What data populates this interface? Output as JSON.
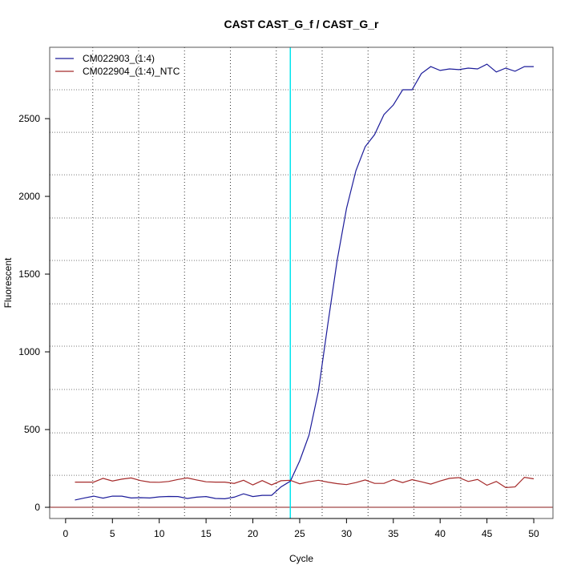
{
  "chart_data": {
    "type": "line",
    "title": "CAST  CAST_G_f / CAST_G_r",
    "xlabel": "Cycle",
    "ylabel": "Fluorescent",
    "xlim": [
      -1.7,
      52.05
    ],
    "ylim": [
      -72,
      2959
    ],
    "x_ticks": [
      0,
      5,
      10,
      15,
      20,
      25,
      30,
      35,
      40,
      45,
      50
    ],
    "y_ticks": [
      0,
      500,
      1000,
      1500,
      2000,
      2500
    ],
    "grid": true,
    "grid_x": [
      2.9,
      7.8,
      12.7,
      17.6,
      22.5,
      27.4,
      32.3,
      37.2,
      42.2,
      47.1
    ],
    "grid_y": [
      206,
      479,
      758,
      1036,
      1309,
      1588,
      1861,
      2139,
      2412,
      2686
    ],
    "threshold_cycle": 24,
    "threshold_color": "#00e5ee",
    "baseline_value": 0,
    "legend_position": "top-left",
    "x": [
      1,
      2,
      3,
      4,
      5,
      6,
      7,
      8,
      9,
      10,
      11,
      12,
      13,
      14,
      15,
      16,
      17,
      18,
      19,
      20,
      21,
      22,
      23,
      24,
      25,
      26,
      27,
      28,
      29,
      30,
      31,
      32,
      33,
      34,
      35,
      36,
      37,
      38,
      39,
      40,
      41,
      42,
      43,
      44,
      45,
      46,
      47,
      48,
      49,
      50
    ],
    "series": [
      {
        "name": "CM022903_(1:4)",
        "color": "#1c1c9a",
        "values": [
          47,
          60,
          72,
          59,
          72,
          72,
          60,
          62,
          60,
          67,
          70,
          69,
          57,
          65,
          69,
          57,
          55,
          65,
          87,
          69,
          77,
          77,
          131,
          168,
          299,
          464,
          747,
          1175,
          1588,
          1923,
          2165,
          2320,
          2397,
          2526,
          2588,
          2686,
          2686,
          2790,
          2835,
          2810,
          2820,
          2815,
          2825,
          2820,
          2850,
          2800,
          2825,
          2805,
          2835,
          2835
        ]
      },
      {
        "name": "CM022904_(1:4)_NTC",
        "color": "#a52a2a",
        "values": [
          162,
          162,
          162,
          186,
          169,
          181,
          189,
          172,
          162,
          161,
          166,
          179,
          189,
          176,
          164,
          162,
          162,
          154,
          174,
          144,
          172,
          144,
          171,
          174,
          151,
          164,
          174,
          162,
          152,
          146,
          159,
          176,
          154,
          154,
          178,
          159,
          178,
          164,
          149,
          169,
          186,
          191,
          166,
          179,
          142,
          166,
          127,
          131,
          193,
          183
        ]
      }
    ]
  }
}
